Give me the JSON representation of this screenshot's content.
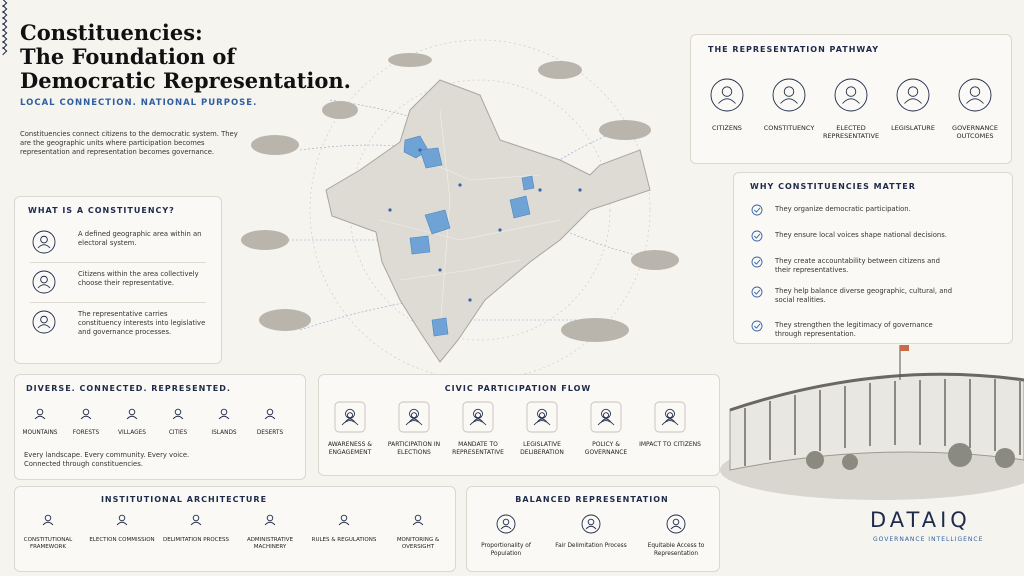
{
  "header": {
    "title_lines": [
      "Constituencies:",
      "The Foundation of",
      "Democratic Representation."
    ],
    "tagline": "LOCAL CONNECTION. NATIONAL PURPOSE.",
    "intro": "Constituencies connect citizens to the democratic system. They are the geographic units where participation becomes representation and representation becomes governance."
  },
  "what_is": {
    "title": "WHAT IS A CONSTITUENCY?",
    "items": [
      "A defined geographic area within an electoral system.",
      "Citizens within the area collectively choose their representative.",
      "The representative carries constituency interests into legislative and governance processes."
    ]
  },
  "pathway": {
    "title": "THE REPRESENTATION PATHWAY",
    "steps": [
      "CITIZENS",
      "CONSTITUENCY",
      "ELECTED REPRESENTATIVE",
      "LEGISLATURE",
      "GOVERNANCE OUTCOMES"
    ]
  },
  "why_matter": {
    "title": "WHY CONSTITUENCIES MATTER",
    "items": [
      "They organize democratic participation.",
      "They ensure local voices shape national decisions.",
      "They create accountability between citizens and their representatives.",
      "They help balance diverse geographic, cultural, and social realities.",
      "They strengthen the legitimacy of governance through representation."
    ]
  },
  "diverse": {
    "title": "DIVERSE. CONNECTED. REPRESENTED.",
    "landscapes": [
      "MOUNTAINS",
      "FORESTS",
      "VILLAGES",
      "CITIES",
      "ISLANDS",
      "DESERTS"
    ],
    "note": "Every landscape. Every community. Every voice. Connected through constituencies."
  },
  "civic_flow": {
    "title": "CIVIC PARTICIPATION FLOW",
    "steps": [
      "AWARENESS & ENGAGEMENT",
      "PARTICIPATION IN ELECTIONS",
      "MANDATE TO REPRESENTATIVE",
      "LEGISLATIVE DELIBERATION",
      "POLICY & GOVERNANCE",
      "IMPACT TO CITIZENS"
    ]
  },
  "institutional": {
    "title": "INSTITUTIONAL ARCHITECTURE",
    "items": [
      "CONSTITUTIONAL FRAMEWORK",
      "ELECTION COMMISSION",
      "DELIMITATION PROCESS",
      "ADMINISTRATIVE MACHINERY",
      "RULES & REGULATIONS",
      "MONITORING & OVERSIGHT"
    ]
  },
  "balanced": {
    "title": "BALANCED REPRESENTATION",
    "items": [
      "Proportionality of Population",
      "Fair Delimitation Process",
      "Equitable Access to Representation"
    ]
  },
  "brand": {
    "name": "DATAIQ",
    "tagline": "GOVERNANCE INTELLIGENCE"
  }
}
